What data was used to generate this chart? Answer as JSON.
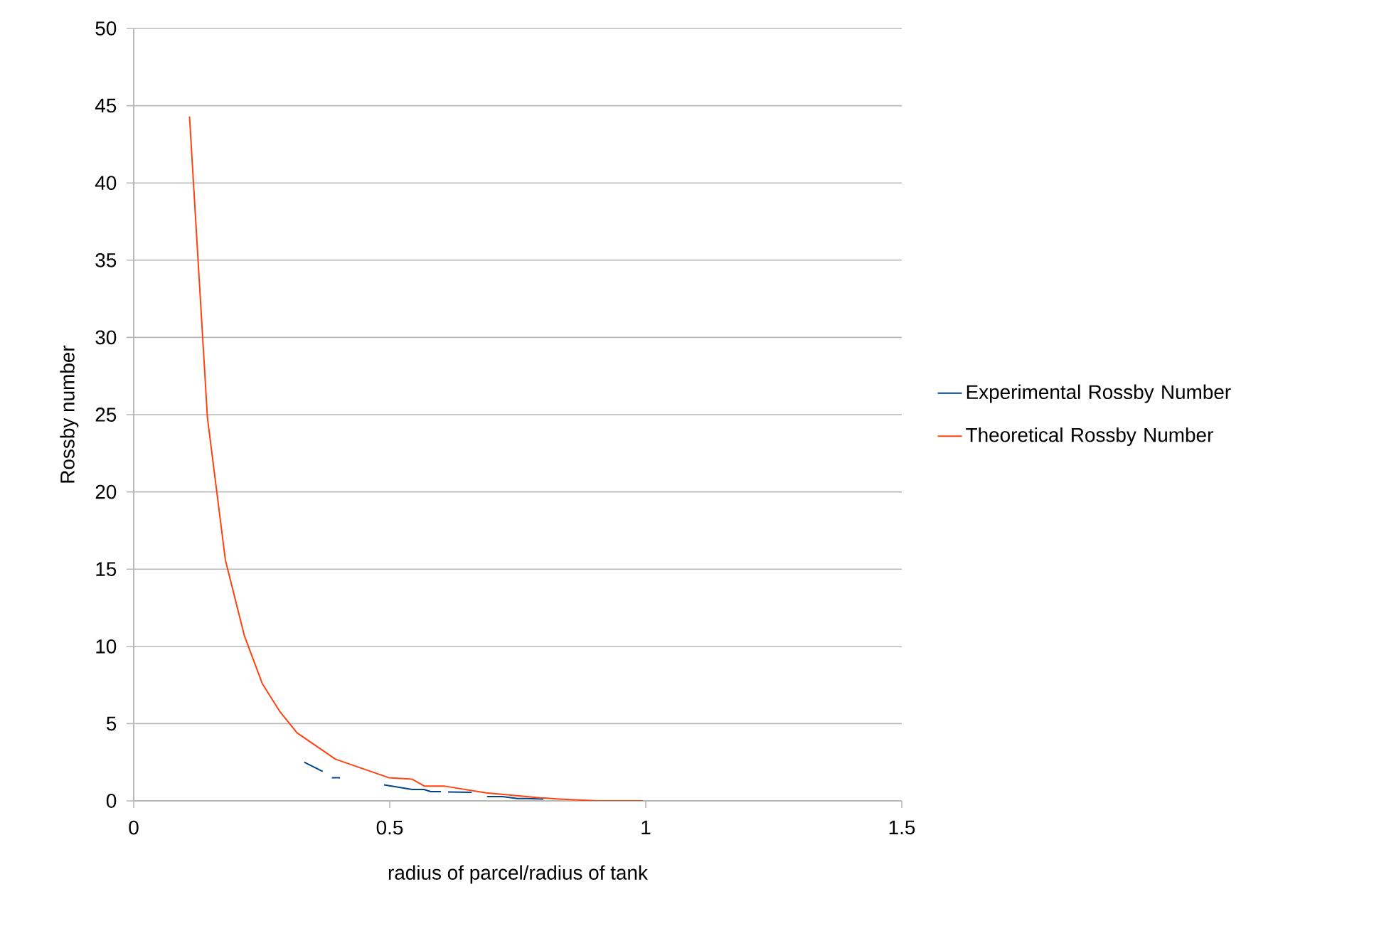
{
  "chart_data": {
    "type": "line",
    "xlabel": "radius of parcel/radius of tank",
    "ylabel": "Rossby number",
    "xlim": [
      0,
      1.5
    ],
    "xticks": [
      0,
      0.5,
      1,
      1.5
    ],
    "ylim": [
      0,
      50
    ],
    "yticks": [
      0,
      5,
      10,
      15,
      20,
      25,
      30,
      35,
      40,
      45,
      50
    ],
    "grid": "y",
    "legend": "right",
    "marker": "none",
    "line_style": "solid",
    "series": [
      {
        "name": "Experimental Rossby Number",
        "color": "#004586",
        "x": [
          0.333,
          0.369,
          0.378,
          0.387,
          0.403,
          0.446,
          0.489,
          0.544,
          0.567,
          0.58,
          0.6,
          0.608,
          0.614,
          0.66,
          0.666,
          0.69,
          0.72,
          0.75,
          0.77,
          0.8
        ],
        "values": [
          2.5,
          1.9,
          null,
          1.5,
          1.5,
          null,
          1.04,
          0.74,
          0.74,
          0.6,
          0.6,
          null,
          0.58,
          0.55,
          null,
          0.28,
          0.28,
          0.15,
          0.15,
          0.12
        ]
      },
      {
        "name": "Theoretical Rossby Number",
        "color": "#ff420e",
        "x": [
          0.109,
          0.144,
          0.179,
          0.216,
          0.251,
          0.285,
          0.319,
          0.394,
          0.498,
          0.544,
          0.568,
          0.608,
          0.688,
          0.794,
          0.831,
          0.906,
          0.994
        ],
        "values": [
          44.3,
          24.8,
          15.6,
          10.7,
          7.6,
          5.8,
          4.4,
          2.7,
          1.5,
          1.4,
          0.95,
          0.95,
          0.52,
          0.2,
          0.12,
          0,
          0
        ]
      }
    ]
  }
}
